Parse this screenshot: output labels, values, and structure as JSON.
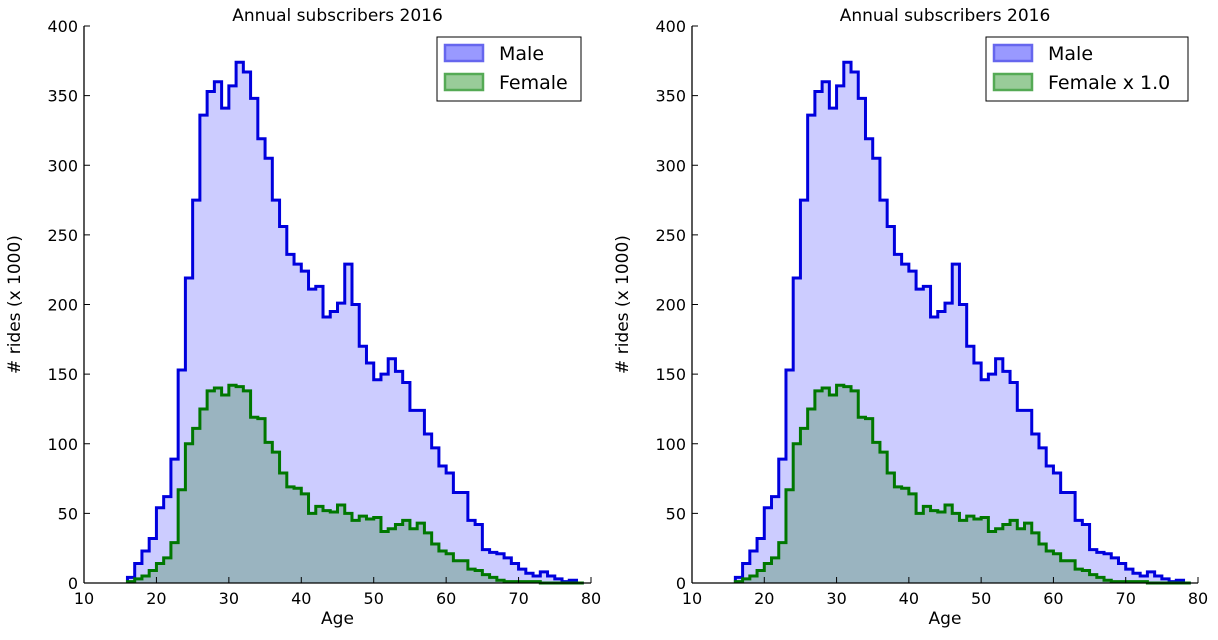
{
  "chart_data": [
    {
      "type": "area",
      "title": "Annual subscribers 2016",
      "xlabel": "Age",
      "ylabel": "# rides (x 1000)",
      "xlim": [
        10,
        80
      ],
      "ylim": [
        0,
        400
      ],
      "xticks": [
        10,
        20,
        30,
        40,
        50,
        60,
        70,
        80
      ],
      "yticks": [
        0,
        50,
        100,
        150,
        200,
        250,
        300,
        350,
        400
      ],
      "bin_edges": [
        16,
        17,
        18,
        19,
        20,
        21,
        22,
        23,
        24,
        25,
        26,
        27,
        28,
        29,
        30,
        31,
        32,
        33,
        34,
        35,
        36,
        37,
        38,
        39,
        40,
        41,
        42,
        43,
        44,
        45,
        46,
        47,
        48,
        49,
        50,
        51,
        52,
        53,
        54,
        55,
        56,
        57,
        58,
        59,
        60,
        61,
        62,
        63,
        64,
        65,
        66,
        67,
        68,
        69,
        70,
        71,
        72,
        73,
        74,
        75,
        76,
        77,
        78,
        79
      ],
      "legend_position": "top-right",
      "grid": false,
      "series": [
        {
          "name": "Male",
          "fill_color": "#ccccff",
          "line_color": "#0000dd",
          "legend_fill": "#9999ff",
          "legend_edge": "#6666ee",
          "values": [
            4,
            14,
            23,
            32,
            54,
            62,
            89,
            153,
            219,
            275,
            336,
            353,
            360,
            341,
            357,
            374,
            367,
            348,
            319,
            305,
            275,
            256,
            236,
            229,
            224,
            211,
            213,
            191,
            195,
            201,
            229,
            200,
            170,
            158,
            146,
            150,
            161,
            152,
            144,
            124,
            124,
            107,
            97,
            84,
            79,
            65,
            65,
            45,
            42,
            24,
            22,
            21,
            18,
            14,
            10,
            7,
            5,
            8,
            5,
            3,
            1,
            2,
            0
          ]
        },
        {
          "name": "Female",
          "fill_color": "#9ab4c0",
          "line_color": "#007700",
          "legend_fill": "#99cc99",
          "legend_edge": "#55aa55",
          "values": [
            1,
            3,
            5,
            9,
            14,
            18,
            29,
            67,
            100,
            111,
            125,
            138,
            140,
            135,
            142,
            141,
            138,
            119,
            118,
            101,
            94,
            79,
            69,
            68,
            64,
            50,
            55,
            52,
            51,
            56,
            50,
            45,
            48,
            46,
            47,
            37,
            39,
            42,
            45,
            39,
            43,
            36,
            28,
            23,
            21,
            16,
            16,
            10,
            9,
            6,
            4,
            2,
            1,
            1,
            1,
            1,
            1,
            0,
            0,
            0,
            0,
            0,
            0
          ]
        }
      ]
    },
    {
      "type": "area",
      "title": "Annual subscribers 2016",
      "xlabel": "Age",
      "ylabel": "# rides (x 1000)",
      "xlim": [
        10,
        80
      ],
      "ylim": [
        0,
        400
      ],
      "xticks": [
        10,
        20,
        30,
        40,
        50,
        60,
        70,
        80
      ],
      "yticks": [
        0,
        50,
        100,
        150,
        200,
        250,
        300,
        350,
        400
      ],
      "bin_edges": [
        16,
        17,
        18,
        19,
        20,
        21,
        22,
        23,
        24,
        25,
        26,
        27,
        28,
        29,
        30,
        31,
        32,
        33,
        34,
        35,
        36,
        37,
        38,
        39,
        40,
        41,
        42,
        43,
        44,
        45,
        46,
        47,
        48,
        49,
        50,
        51,
        52,
        53,
        54,
        55,
        56,
        57,
        58,
        59,
        60,
        61,
        62,
        63,
        64,
        65,
        66,
        67,
        68,
        69,
        70,
        71,
        72,
        73,
        74,
        75,
        76,
        77,
        78,
        79
      ],
      "legend_position": "top-right",
      "grid": false,
      "series": [
        {
          "name": "Male",
          "fill_color": "#ccccff",
          "line_color": "#0000dd",
          "legend_fill": "#9999ff",
          "legend_edge": "#6666ee",
          "values": [
            4,
            14,
            23,
            32,
            54,
            62,
            89,
            153,
            219,
            275,
            336,
            353,
            360,
            341,
            357,
            374,
            367,
            348,
            319,
            305,
            275,
            256,
            236,
            229,
            224,
            211,
            213,
            191,
            195,
            201,
            229,
            200,
            170,
            158,
            146,
            150,
            161,
            152,
            144,
            124,
            124,
            107,
            97,
            84,
            79,
            65,
            65,
            45,
            42,
            24,
            22,
            21,
            18,
            14,
            10,
            7,
            5,
            8,
            5,
            3,
            1,
            2,
            0
          ]
        },
        {
          "name": "Female x 1.0",
          "fill_color": "#9ab4c0",
          "line_color": "#007700",
          "legend_fill": "#99cc99",
          "legend_edge": "#55aa55",
          "values": [
            1,
            3,
            5,
            9,
            14,
            18,
            29,
            67,
            100,
            111,
            125,
            138,
            140,
            135,
            142,
            141,
            138,
            119,
            118,
            101,
            94,
            79,
            69,
            68,
            64,
            50,
            55,
            52,
            51,
            56,
            50,
            45,
            48,
            46,
            47,
            37,
            39,
            42,
            45,
            39,
            43,
            36,
            28,
            23,
            21,
            16,
            16,
            10,
            9,
            6,
            4,
            2,
            1,
            1,
            1,
            1,
            1,
            0,
            0,
            0,
            0,
            0,
            0
          ]
        }
      ]
    }
  ]
}
